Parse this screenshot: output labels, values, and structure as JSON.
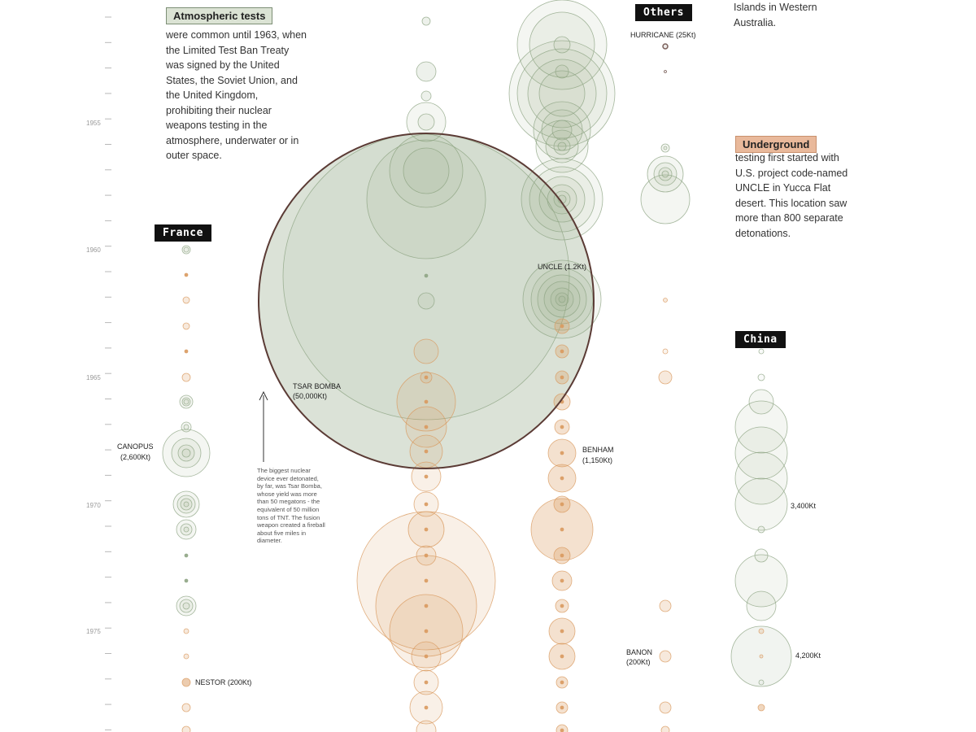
{
  "chart_data": {
    "type": "scatter",
    "title": "",
    "xlabel": "",
    "ylabel": "",
    "y_axis": {
      "ticks": [
        1955,
        1960,
        1965,
        1970,
        1975
      ]
    },
    "colors": {
      "atmospheric": "#8fa584",
      "underground": "#d99a5f",
      "dark": "#5b3b35"
    },
    "columns": [
      "France",
      "Others",
      "China"
    ],
    "annotations": [
      {
        "name": "TSAR BOMBA",
        "yield": "(50,000Kt)"
      },
      {
        "name": "UNCLE",
        "yield": "(1.2Kt)"
      },
      {
        "name": "CANOPUS",
        "yield": "(2,600Kt)"
      },
      {
        "name": "BENHAM",
        "yield": "(1,150Kt)"
      },
      {
        "name": "NESTOR",
        "yield": "(200Kt)"
      },
      {
        "name": "HURRICANE",
        "yield": "(25Kt)"
      },
      {
        "name": "BANON",
        "yield": "(200Kt)"
      },
      {
        "name": "",
        "yield": "3,400Kt"
      },
      {
        "name": "",
        "yield": "4,200Kt"
      }
    ]
  },
  "legend": {
    "atmospheric": {
      "title": "Atmospheric tests",
      "lines": [
        "were common until 1963, when",
        "the Limited Test Ban Treaty",
        "was signed by the United",
        "States, the Soviet Union, and",
        "the United Kingdom,",
        "prohibiting their nuclear",
        "weapons testing in the",
        "atmosphere, underwater or in",
        "outer space."
      ]
    },
    "underground": {
      "title": "Underground",
      "lines": [
        "testing first started with",
        "U.S. project code-named",
        "UNCLE in Yucca Flat",
        "desert. This location saw",
        "more than 800 separate",
        "detonations."
      ]
    },
    "others_intro": {
      "lines": [
        "Islands in Western",
        "Australia."
      ]
    }
  },
  "tags": {
    "france": "France",
    "others": "Others",
    "china": "China"
  },
  "labels": {
    "tsar_name": "TSAR BOMBA",
    "tsar_yield": "(50,000Kt)",
    "uncle": "UNCLE (1.2Kt)",
    "canopus_name": "CANOPUS",
    "canopus_yield": "(2,600Kt)",
    "benham_name": "BENHAM",
    "benham_yield": "(1,150Kt)",
    "nestor": "NESTOR (200Kt)",
    "hurricane": "HURRICANE (25Kt)",
    "banon_name": "BANON",
    "banon_yield": "(200Kt)",
    "china_a": "3,400Kt",
    "china_b": "4,200Kt"
  },
  "note": {
    "lines": [
      "The biggest nuclear",
      "device ever detonated,",
      "by far, was Tsar Bomba,",
      "whose yield was more",
      "than 50 megatons - the",
      "equivalent of 50 million",
      "tons of TNT. The fusion",
      "weapon created a fireball",
      "about five miles in",
      "diameter."
    ]
  },
  "years": {
    "y1955": "1955",
    "y1960": "1960",
    "y1965": "1965",
    "y1970": "1970",
    "y1975": "1975"
  }
}
